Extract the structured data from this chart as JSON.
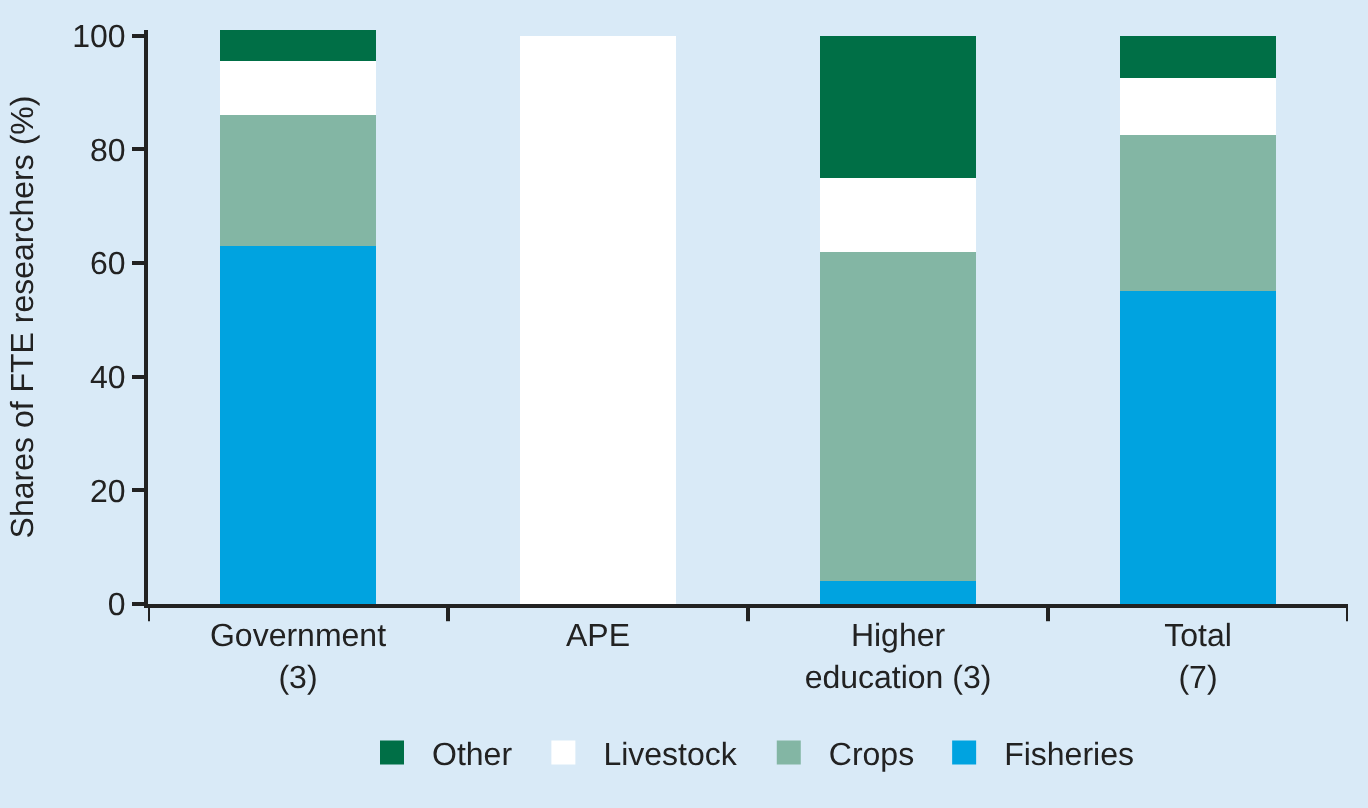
{
  "chart_data": {
    "type": "bar",
    "stacked": true,
    "ylabel": "Shares of FTE researchers (%)",
    "categories": [
      "Government\n(3)",
      "APE",
      "Higher\neducation (3)",
      "Total\n(7)"
    ],
    "series": [
      {
        "name": "Fisheries",
        "color": "#00a3e0",
        "values": [
          63,
          0,
          4,
          55
        ]
      },
      {
        "name": "Crops",
        "color": "#83b6a4",
        "values": [
          23,
          0,
          58,
          27.5
        ]
      },
      {
        "name": "Livestock",
        "color": "#ffffff",
        "values": [
          9.5,
          100,
          13,
          10
        ]
      },
      {
        "name": "Other",
        "color": "#006f46",
        "values": [
          5.5,
          0,
          25,
          7.5
        ]
      }
    ],
    "ylim": [
      0,
      101
    ],
    "yticks": [
      0,
      20,
      40,
      60,
      80,
      100
    ],
    "grid": false,
    "legend": "bottom"
  }
}
